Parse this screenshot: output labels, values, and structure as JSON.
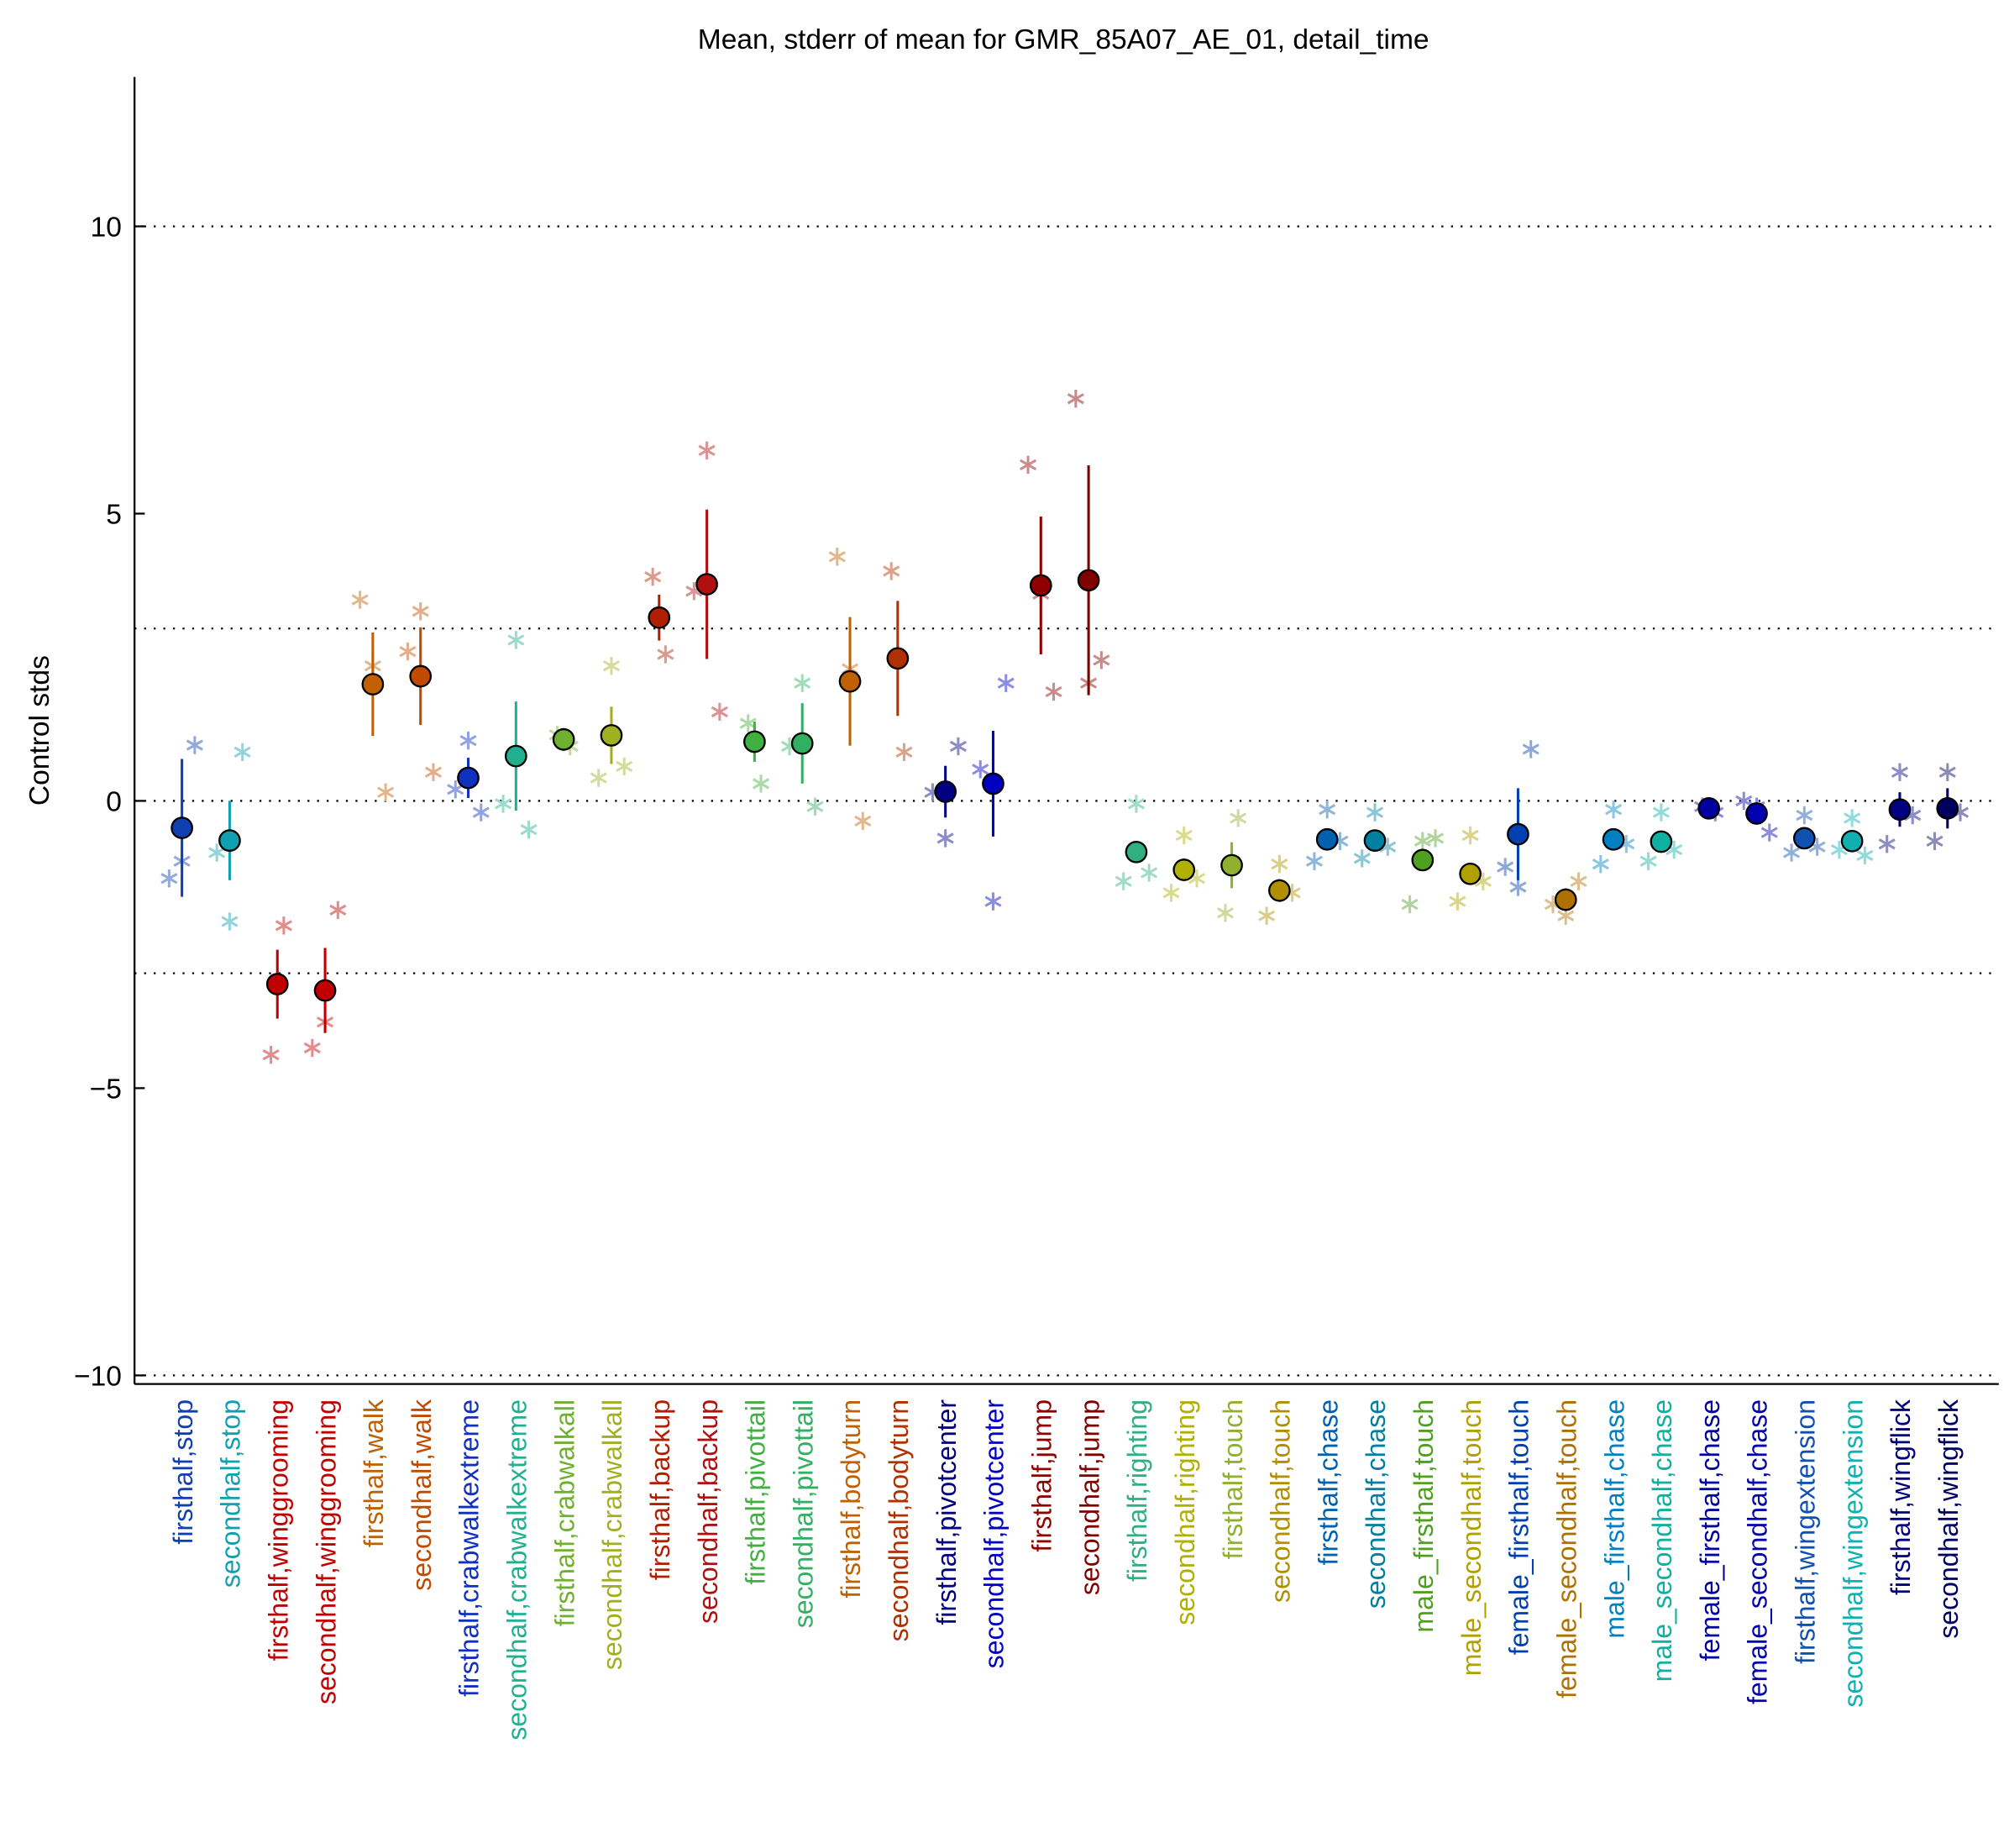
{
  "chart_data": {
    "type": "errorbar",
    "title": "Mean, stderr of mean for GMR_85A07_AE_01, detail_time",
    "ylabel": "Control stds",
    "ylim": [
      -10.15,
      12.6
    ],
    "yticks": [
      {
        "value": -10,
        "label": "−10"
      },
      {
        "value": -5,
        "label": "−5"
      },
      0,
      5,
      10
    ],
    "reference_lines": [
      -10,
      -3,
      0,
      3,
      10
    ],
    "categories": [
      "firsthalf,stop",
      "secondhalf,stop",
      "firsthalf,winggrooming",
      "secondhalf,winggrooming",
      "firsthalf,walk",
      "secondhalf,walk",
      "firsthalf,crabwalkextreme",
      "secondhalf,crabwalkextreme",
      "firsthalf,crabwalkall",
      "secondhalf,crabwalkall",
      "firsthalf,backup",
      "secondhalf,backup",
      "firsthalf,pivottail",
      "secondhalf,pivottail",
      "firsthalf,bodyturn",
      "secondhalf,bodyturn",
      "firsthalf,pivotcenter",
      "secondhalf,pivotcenter",
      "firsthalf,jump",
      "secondhalf,jump",
      "firsthalf,righting",
      "secondhalf,righting",
      "firsthalf,touch",
      "secondhalf,touch",
      "firsthalf,chase",
      "secondhalf,chase",
      "male_firsthalf,touch",
      "male_secondhalf,touch",
      "female_firsthalf,touch",
      "female_secondhalf,touch",
      "male_firsthalf,chase",
      "male_secondhalf,chase",
      "female_firsthalf,chase",
      "female_secondhalf,chase",
      "firsthalf,wingextension",
      "secondhalf,wingextension",
      "firsthalf,wingflick",
      "secondhalf,wingflick"
    ],
    "means": [
      -0.47,
      -0.69,
      -3.19,
      -3.3,
      2.03,
      2.17,
      0.4,
      0.78,
      1.07,
      1.14,
      3.19,
      3.77,
      1.03,
      1.0,
      2.08,
      2.48,
      0.16,
      0.3,
      3.75,
      3.84,
      -0.89,
      -1.2,
      -1.12,
      -1.56,
      -0.67,
      -0.69,
      -1.03,
      -1.27,
      -0.58,
      -1.72,
      -0.67,
      -0.71,
      -0.13,
      -0.22,
      -0.65,
      -0.7,
      -0.15,
      -0.13
    ],
    "errors": [
      1.2,
      0.69,
      0.6,
      0.74,
      0.9,
      0.85,
      0.35,
      0.95,
      0.2,
      0.5,
      0.4,
      1.3,
      0.35,
      0.7,
      1.12,
      1.0,
      0.45,
      0.92,
      1.2,
      2.0,
      0.1,
      0.2,
      0.4,
      0.2,
      0.1,
      0.1,
      0.1,
      0.1,
      0.8,
      0.2,
      0.1,
      0.1,
      0.15,
      0.15,
      0.1,
      0.1,
      0.3,
      0.35
    ],
    "colors": [
      "#1040b0",
      "#10a0b0",
      "#c00000",
      "#c00000",
      "#c06000",
      "#c04a00",
      "#1030c0",
      "#20b090",
      "#70b030",
      "#a0b020",
      "#b02000",
      "#b01010",
      "#40b040",
      "#30b060",
      "#c06000",
      "#b03000",
      "#000080",
      "#0000c0",
      "#900000",
      "#800000",
      "#30b080",
      "#b0b000",
      "#90b030",
      "#b09000",
      "#0060b0",
      "#0080a0",
      "#50a020",
      "#b0a000",
      "#0040b0",
      "#b07000",
      "#0080c0",
      "#10b0a0",
      "#0000a0",
      "#0000b0",
      "#1050b0",
      "#10b0b0",
      "#000080",
      "#000060"
    ],
    "stars": [
      [
        -1.35,
        -1.05,
        0.97
      ],
      [
        -0.9,
        -2.1,
        0.85
      ],
      [
        -4.42,
        -2.17
      ],
      [
        -4.3,
        -3.85,
        -1.9
      ],
      [
        3.5,
        2.35,
        0.15
      ],
      [
        2.6,
        3.3,
        0.5
      ],
      [
        0.2,
        1.05,
        -0.2
      ],
      [
        -0.05,
        2.8,
        -0.5
      ],
      [
        1.15,
        0.95
      ],
      [
        0.4,
        2.35,
        0.6
      ],
      [
        3.9,
        2.55
      ],
      [
        3.65,
        6.1,
        1.55
      ],
      [
        1.35,
        0.3
      ],
      [
        0.95,
        2.05,
        -0.1
      ],
      [
        4.25,
        2.3,
        -0.35
      ],
      [
        4.0,
        0.85
      ],
      [
        0.15,
        -0.65,
        0.95
      ],
      [
        0.55,
        -1.75,
        2.05
      ],
      [
        5.85,
        3.6,
        1.9
      ],
      [
        7.0,
        2.05,
        2.45
      ],
      [
        -1.4,
        -0.05,
        -1.25
      ],
      [
        -1.6,
        -0.6,
        -1.35
      ],
      [
        -1.95,
        -0.3
      ],
      [
        -2.0,
        -1.1,
        -1.6
      ],
      [
        -1.05,
        -0.15,
        -0.7
      ],
      [
        -1.0,
        -0.2,
        -0.8
      ],
      [
        -1.8,
        -0.7,
        -0.65
      ],
      [
        -1.75,
        -0.6,
        -1.4
      ],
      [
        -1.15,
        -1.5,
        0.9
      ],
      [
        -1.8,
        -2.0,
        -1.4
      ],
      [
        -1.1,
        -0.15,
        -0.75
      ],
      [
        -1.05,
        -0.2,
        -0.85
      ],
      [
        -0.1,
        -0.2
      ],
      [
        0.0,
        -0.1,
        -0.55
      ],
      [
        -0.9,
        -0.25,
        -0.8
      ],
      [
        -0.85,
        -0.3,
        -0.95
      ],
      [
        -0.75,
        0.5,
        -0.25
      ],
      [
        -0.7,
        0.5,
        -0.2
      ]
    ]
  }
}
